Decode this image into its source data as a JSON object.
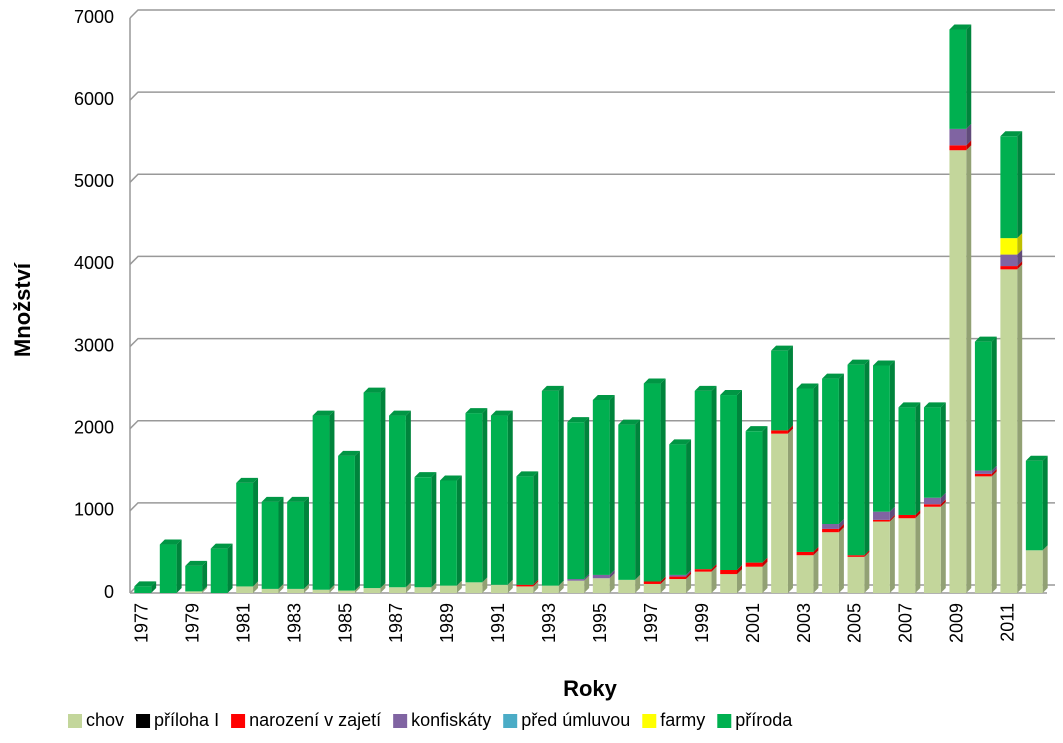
{
  "chart_data": {
    "type": "stacked_bar",
    "categories": [
      "1977",
      null,
      "1979",
      null,
      "1981",
      null,
      "1983",
      null,
      "1985",
      null,
      "1987",
      null,
      "1989",
      null,
      "1991",
      null,
      "1993",
      null,
      "1995",
      null,
      "1997",
      null,
      "1999",
      null,
      "2001",
      null,
      "2003",
      null,
      "2005",
      null,
      "2007",
      null,
      "2009",
      null,
      "2011",
      null
    ],
    "series": [
      {
        "name": "chov",
        "color": "#c3d69b",
        "values": [
          0,
          0,
          20,
          0,
          80,
          50,
          50,
          40,
          30,
          60,
          70,
          70,
          90,
          130,
          100,
          80,
          90,
          150,
          180,
          160,
          110,
          170,
          260,
          230,
          320,
          1940,
          460,
          740,
          440,
          870,
          910,
          1050,
          5390,
          1420,
          3940,
          520
        ]
      },
      {
        "name": "příloha I",
        "color": "#000000",
        "values": [
          0,
          0,
          0,
          0,
          0,
          0,
          0,
          0,
          0,
          0,
          0,
          0,
          0,
          0,
          0,
          0,
          0,
          0,
          0,
          0,
          0,
          0,
          0,
          0,
          0,
          0,
          0,
          0,
          0,
          0,
          0,
          0,
          0,
          0,
          0,
          0
        ]
      },
      {
        "name": "narození v zajetí",
        "color": "#ff0000",
        "values": [
          0,
          0,
          0,
          0,
          0,
          0,
          0,
          0,
          0,
          0,
          0,
          0,
          0,
          0,
          0,
          20,
          0,
          0,
          0,
          0,
          30,
          30,
          30,
          50,
          50,
          40,
          40,
          40,
          20,
          20,
          40,
          30,
          60,
          30,
          40,
          0
        ]
      },
      {
        "name": "konfiskáty",
        "color": "#8064a2",
        "values": [
          0,
          0,
          0,
          0,
          0,
          0,
          0,
          0,
          0,
          0,
          0,
          0,
          0,
          0,
          0,
          0,
          0,
          20,
          40,
          0,
          0,
          20,
          0,
          0,
          0,
          0,
          0,
          60,
          0,
          100,
          0,
          80,
          200,
          40,
          140,
          0
        ]
      },
      {
        "name": "před úmluvou",
        "color": "#4bacc6",
        "values": [
          0,
          0,
          0,
          0,
          0,
          0,
          0,
          0,
          0,
          0,
          0,
          0,
          0,
          0,
          0,
          0,
          0,
          0,
          0,
          0,
          0,
          0,
          0,
          0,
          0,
          0,
          0,
          0,
          0,
          0,
          0,
          0,
          0,
          0,
          0,
          0
        ]
      },
      {
        "name": "farmy",
        "color": "#ffff00",
        "values": [
          0,
          0,
          0,
          0,
          0,
          0,
          0,
          0,
          0,
          0,
          0,
          0,
          0,
          0,
          0,
          0,
          0,
          0,
          0,
          0,
          0,
          0,
          0,
          0,
          0,
          0,
          0,
          0,
          0,
          0,
          0,
          0,
          0,
          0,
          200,
          0
        ]
      },
      {
        "name": "příroda",
        "color": "#00b050",
        "values": [
          80,
          590,
          310,
          540,
          1260,
          1060,
          1060,
          2120,
          1640,
          2380,
          2090,
          1340,
          1280,
          2060,
          2060,
          1320,
          2370,
          1910,
          2130,
          1890,
          2410,
          1590,
          2170,
          2130,
          1600,
          970,
          1990,
          1770,
          2320,
          1780,
          1310,
          1100,
          1210,
          1570,
          1240,
          1090
        ]
      }
    ],
    "ylim": [
      0,
      7000
    ],
    "yticks": [
      0,
      1000,
      2000,
      3000,
      4000,
      5000,
      6000,
      7000
    ],
    "grid": true,
    "x_label": "Roky",
    "y_label": "Množství",
    "legend": "bottom"
  }
}
